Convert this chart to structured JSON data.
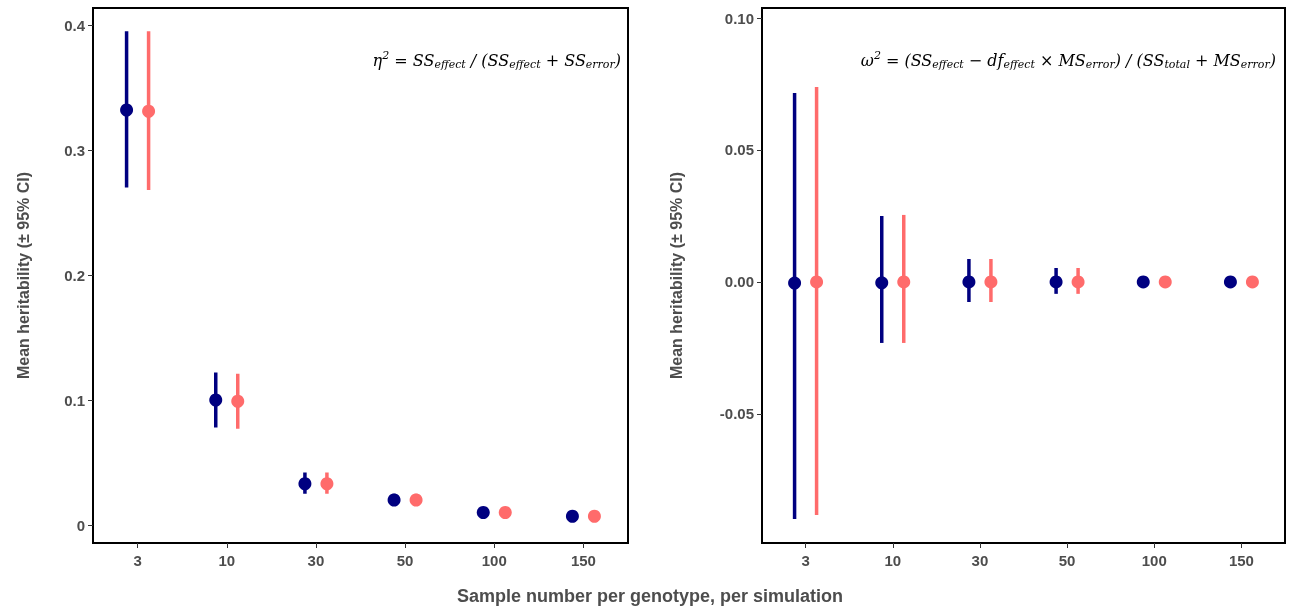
{
  "chart_data": [
    {
      "type": "scatter",
      "ylabel": "Mean heritability (± 95% CI)",
      "xlabel": "Sample number per genotype, per simulation",
      "categories": [
        "3",
        "10",
        "30",
        "50",
        "100",
        "150"
      ],
      "ylim": [
        -0.0144,
        0.4136
      ],
      "yticks": [
        {
          "value": 0,
          "label": "0"
        },
        0.1,
        0.2,
        0.3,
        0.4
      ],
      "grid": false,
      "marker": "circle",
      "annotations": [
        "η$^{2}$ = SS$_{effect}$ / (SS$_{effect}$ + SS$_{error}$)"
      ],
      "series": [
        {
          "color": "#000080",
          "values": [
            0.332,
            0.1,
            0.033,
            0.02,
            0.01,
            0.007
          ],
          "errors": [
            [
              0.27,
              0.395
            ],
            [
              0.078,
              0.122
            ],
            [
              0.025,
              0.042
            ],
            [
              0.016,
              0.025
            ],
            [
              0.009,
              0.011
            ],
            [
              0.006,
              0.008
            ]
          ]
        },
        {
          "color": "#ff6b6b",
          "values": [
            0.331,
            0.099,
            0.033,
            0.02,
            0.01,
            0.007
          ],
          "errors": [
            [
              0.268,
              0.395
            ],
            [
              0.077,
              0.121
            ],
            [
              0.025,
              0.042
            ],
            [
              0.016,
              0.025
            ],
            [
              0.009,
              0.011
            ],
            [
              0.006,
              0.008
            ]
          ]
        }
      ]
    },
    {
      "type": "scatter",
      "ylabel": "Mean heritability (± 95% CI)",
      "categories": [
        "3",
        "10",
        "30",
        "50",
        "100",
        "150"
      ],
      "ylim": [
        -0.0989,
        0.1038
      ],
      "yticks": [
        {
          "value": -0.05,
          "label": "-0.05"
        },
        {
          "value": 0,
          "label": "0.00"
        },
        0.05,
        {
          "value": 0.1,
          "label": "0.10"
        }
      ],
      "grid": false,
      "marker": "circle",
      "annotations": [
        "ω$^{2}$ = (SS$_{effect}$ − df$_{effect}$ × MS$_{error}$) / (SS$_{total}$ + MS$_{error}$)"
      ],
      "series": [
        {
          "color": "#000080",
          "values": [
            -0.0004,
            -0.0003,
            0,
            0,
            0,
            0
          ],
          "errors": [
            [
              -0.0898,
              0.0716
            ],
            [
              -0.0231,
              0.025
            ],
            [
              -0.0076,
              0.0087
            ],
            [
              -0.0045,
              0.0053
            ],
            [
              -0.002,
              0.002
            ],
            [
              -0.0005,
              0.0005
            ]
          ]
        },
        {
          "color": "#ff6b6b",
          "values": [
            0,
            0,
            0,
            0,
            0,
            0
          ],
          "errors": [
            [
              -0.0883,
              0.0739
            ],
            [
              -0.0231,
              0.0254
            ],
            [
              -0.0076,
              0.0087
            ],
            [
              -0.0045,
              0.0053
            ],
            [
              -0.002,
              0.002
            ],
            [
              -0.0005,
              0.0005
            ]
          ]
        }
      ]
    }
  ]
}
